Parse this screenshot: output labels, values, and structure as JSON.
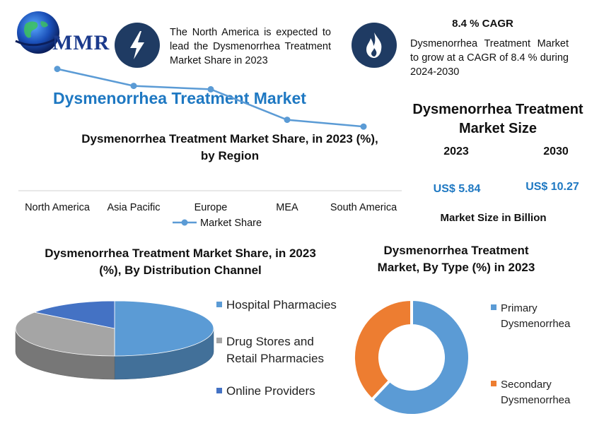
{
  "brand": {
    "logo_text": "MMR"
  },
  "header": {
    "insight1": "The North America is expected to lead the Dysmenorrhea Treatment Market Share in 2023",
    "cagr_title": "8.4 % CAGR",
    "insight2": "Dysmenorrhea Treatment Market to grow at a CAGR of 8.4 % during 2024-2030",
    "icon1": "lightning-icon",
    "icon2": "flame-icon"
  },
  "main_title": "Dysmenorrhea Treatment Market",
  "size_panel": {
    "title": "Dysmenorrhea Treatment Market Size",
    "year1": "2023",
    "year2": "2030",
    "value1": "US$ 5.84",
    "value2": "US$ 10.27",
    "unit_note": "Market Size in Billion"
  },
  "chart_data": [
    {
      "type": "line",
      "title": "Dysmenorrhea Treatment Market Share, in 2023 (%), by Region",
      "categories": [
        "North America",
        "Asia Pacific",
        "Europe",
        "MEA",
        "South America"
      ],
      "series": [
        {
          "name": "Market Share",
          "values": [
            38,
            33,
            32,
            23,
            21
          ]
        }
      ],
      "ylim": [
        0,
        50
      ],
      "legend": "bottom",
      "grid": false,
      "color": "#5b9bd5"
    },
    {
      "type": "pie",
      "title": "Dysmenorrhea Treatment Market Share, in 2023 (%), By Distribution Channel",
      "categories": [
        "Hospital Pharmacies",
        "Drug Stores and Retail Pharmacies",
        "Online Providers"
      ],
      "values": [
        50,
        35,
        15
      ],
      "colors": [
        "#5b9bd5",
        "#a5a5a5",
        "#4472c4"
      ],
      "legend": "right"
    },
    {
      "type": "pie",
      "title": "Dysmenorrhea Treatment Market, By Type (%) in 2023",
      "categories": [
        "Primary Dysmenorrhea",
        "Secondary Dysmenorrhea"
      ],
      "values": [
        62,
        38
      ],
      "colors": [
        "#5b9bd5",
        "#ed7d31"
      ],
      "legend": "right"
    }
  ]
}
